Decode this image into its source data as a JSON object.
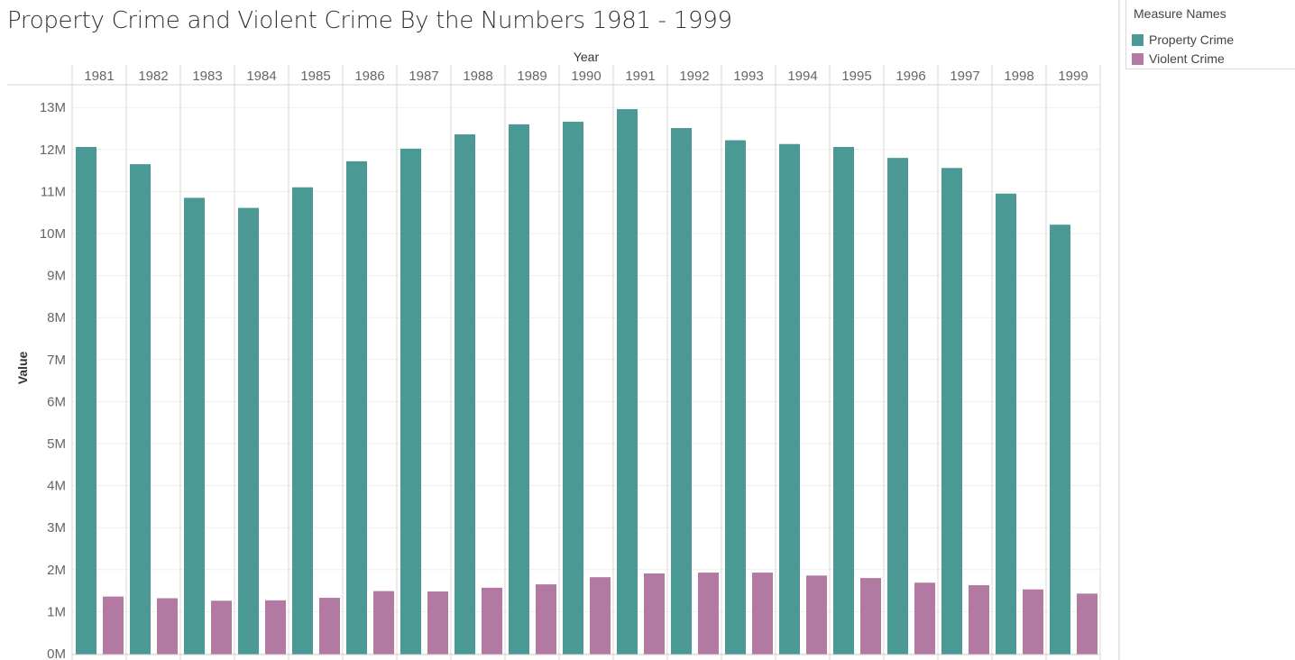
{
  "title": "Property Crime and Violent Crime By the Numbers 1981 - 1999",
  "legend": {
    "title": "Measure Names",
    "items": [
      {
        "label": "Property  Crime",
        "color": "#4a9994"
      },
      {
        "label": "Violent Crime",
        "color": "#b279a2"
      }
    ]
  },
  "chart_data": {
    "type": "bar",
    "xlabel": "Year",
    "ylabel": "Value",
    "categories": [
      "1981",
      "1982",
      "1983",
      "1984",
      "1985",
      "1986",
      "1987",
      "1988",
      "1989",
      "1990",
      "1991",
      "1992",
      "1993",
      "1994",
      "1995",
      "1996",
      "1997",
      "1998",
      "1999"
    ],
    "series": [
      {
        "name": "Property  Crime",
        "color": "#4a9994",
        "values": [
          12060000,
          11650000,
          10850000,
          10610000,
          11100000,
          11720000,
          12020000,
          12360000,
          12600000,
          12660000,
          12960000,
          12510000,
          12220000,
          12130000,
          12060000,
          11800000,
          11560000,
          10950000,
          10210000
        ]
      },
      {
        "name": "Violent Crime",
        "color": "#b279a2",
        "values": [
          1360000,
          1320000,
          1260000,
          1270000,
          1330000,
          1490000,
          1480000,
          1570000,
          1650000,
          1820000,
          1910000,
          1930000,
          1930000,
          1860000,
          1800000,
          1690000,
          1630000,
          1530000,
          1430000
        ]
      }
    ],
    "ylim": [
      0,
      13500000
    ],
    "yticks": [
      0,
      1000000,
      2000000,
      3000000,
      4000000,
      5000000,
      6000000,
      7000000,
      8000000,
      9000000,
      10000000,
      11000000,
      12000000,
      13000000
    ],
    "ytick_labels": [
      "0M",
      "1M",
      "2M",
      "3M",
      "4M",
      "5M",
      "6M",
      "7M",
      "8M",
      "9M",
      "10M",
      "11M",
      "12M",
      "13M"
    ],
    "grid": true
  }
}
